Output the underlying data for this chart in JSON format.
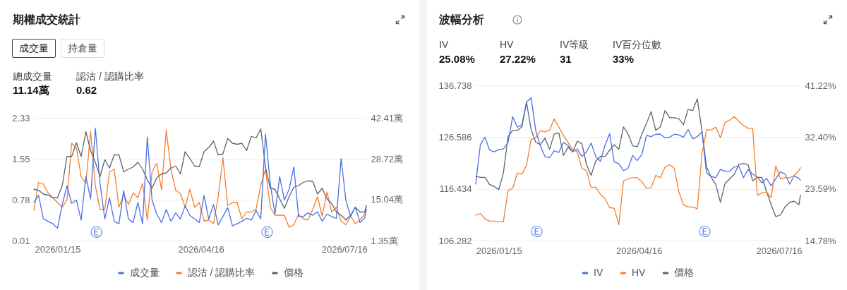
{
  "chart_data": [
    {
      "type": "line",
      "title": "期權成交統計",
      "x": [
        "2025-12-31",
        "2026-01-03",
        "2026-01-06",
        "2026-01-09",
        "2026-01-12",
        "2026-01-15",
        "2026-01-18",
        "2026-01-21",
        "2026-01-24",
        "2026-01-27",
        "2026-01-30",
        "2026-02-02",
        "2026-02-05",
        "2026-02-08",
        "2026-02-11",
        "2026-02-14",
        "2026-02-17",
        "2026-02-20",
        "2026-02-23",
        "2026-02-26",
        "2026-03-01",
        "2026-03-04",
        "2026-03-07",
        "2026-03-10",
        "2026-03-13",
        "2026-03-16",
        "2026-03-19",
        "2026-03-22",
        "2026-03-25",
        "2026-03-28",
        "2026-03-31",
        "2026-04-03",
        "2026-04-06",
        "2026-04-09",
        "2026-04-12",
        "2026-04-15",
        "2026-04-18",
        "2026-04-21",
        "2026-04-24",
        "2026-04-27",
        "2026-04-30",
        "2026-05-03",
        "2026-05-06",
        "2026-05-09",
        "2026-05-12",
        "2026-05-15",
        "2026-05-18",
        "2026-05-21",
        "2026-05-24",
        "2026-05-27",
        "2026-05-30",
        "2026-06-02",
        "2026-06-05",
        "2026-06-08",
        "2026-06-11",
        "2026-06-14",
        "2026-06-17",
        "2026-06-20",
        "2026-06-23",
        "2026-06-26",
        "2026-06-29",
        "2026-07-02",
        "2026-07-05",
        "2026-07-08",
        "2026-07-11",
        "2026-07-14",
        "2026-07-17",
        "2026-07-20",
        "2026-07-23",
        "2026-07-26",
        "2026-07-29",
        "2026-07-30"
      ],
      "xlim": [
        "2025-12-31",
        "2026-07-30"
      ],
      "xticks": [
        {
          "value": "2026-01-15",
          "label": "2026/01/15"
        },
        {
          "value": "2026-04-16",
          "label": "2026/04/16"
        },
        {
          "value": "2026-07-16",
          "label": "2026/07/16"
        }
      ],
      "ylim": [
        0.01,
        2.33
      ],
      "yticks": [
        0.01,
        0.78,
        1.55,
        2.33
      ],
      "y2lim": [
        1.35,
        42.41
      ],
      "y2ticks": [
        {
          "value": 1.35,
          "label": "1.35萬"
        },
        {
          "value": 15.04,
          "label": "15.04萬"
        },
        {
          "value": 28.72,
          "label": "28.72萬"
        },
        {
          "value": 42.41,
          "label": "42.41萬"
        }
      ],
      "grid": "y",
      "legend": "bottom",
      "series": [
        {
          "name": "成交量",
          "color": "#4a70e6",
          "axis": "y2",
          "values": [
            14.1,
            16.5,
            8.6,
            7.8,
            7.0,
            5.5,
            13.4,
            19.7,
            13.8,
            14.9,
            8.2,
            22.8,
            15.3,
            39.0,
            20.5,
            8.6,
            15.7,
            7.8,
            7.0,
            18.1,
            8.6,
            7.4,
            14.1,
            7.0,
            36.0,
            14.9,
            10.2,
            7.4,
            11.8,
            7.8,
            10.6,
            8.6,
            13.0,
            9.8,
            8.6,
            7.4,
            16.5,
            8.6,
            13.4,
            6.6,
            9.4,
            12.4,
            6.3,
            7.0,
            7.8,
            8.8,
            8.2,
            11.4,
            8.6,
            37.0,
            20.5,
            10.2,
            22.8,
            14.9,
            18.5,
            26.0,
            9.4,
            9.4,
            10.6,
            9.8,
            11.0,
            7.8,
            10.2,
            9.4,
            8.8,
            28.8,
            14.9,
            9.4,
            12.6,
            7.4,
            9.0,
            11.8
          ]
        },
        {
          "name": "認沽 / 認購比率",
          "color": "#f47f2d",
          "values": [
            0.58,
            1.11,
            1.08,
            0.91,
            0.82,
            0.73,
            0.64,
            0.78,
            1.85,
            1.76,
            1.22,
            1.09,
            2.07,
            1.05,
            0.6,
            0.6,
            1.31,
            1.36,
            0.64,
            0.88,
            0.69,
            0.91,
            0.82,
            1.09,
            0.4,
            1.31,
            1.47,
            0.97,
            2.1,
            1.36,
            0.96,
            0.9,
            0.64,
            0.98,
            0.64,
            0.73,
            0.38,
            0.4,
            0.33,
            0.84,
            1.58,
            0.67,
            0.73,
            0.73,
            0.42,
            0.55,
            0.55,
            0.6,
            1.05,
            1.36,
            0.64,
            0.49,
            0.49,
            0.49,
            0.26,
            0.31,
            0.51,
            0.42,
            0.4,
            0.6,
            0.84,
            0.47,
            0.93,
            0.55,
            0.64,
            0.38,
            0.31,
            0.47,
            0.33,
            0.4,
            0.51,
            0.67
          ]
        },
        {
          "name": "價格",
          "color": "#5c6370",
          "values": [
            0.98,
            0.96,
            0.89,
            0.87,
            0.82,
            0.82,
            1.05,
            1.6,
            1.6,
            1.86,
            1.6,
            2.07,
            1.71,
            1.49,
            1.22,
            1.54,
            1.38,
            1.63,
            1.63,
            1.31,
            1.36,
            1.4,
            1.49,
            1.36,
            1.16,
            1.0,
            1.2,
            1.27,
            1.29,
            1.38,
            1.42,
            1.27,
            1.69,
            1.56,
            1.42,
            1.41,
            1.69,
            1.77,
            1.89,
            1.63,
            1.65,
            1.94,
            1.85,
            1.83,
            1.85,
            1.71,
            1.98,
            1.95,
            2.12,
            1.4,
            1.0,
            0.98,
            0.8,
            0.62,
            0.84,
            1.02,
            1.05,
            1.11,
            1.14,
            1.13,
            0.89,
            1.0,
            0.8,
            0.71,
            0.55,
            0.49,
            0.4,
            0.49,
            0.64,
            0.55,
            0.55,
            0.67
          ]
        }
      ],
      "annotations": [
        "成交量",
        "持倉量",
        "總成交量",
        "11.14萬",
        "認沽 / 認購比率",
        "0.62",
        "Ⓔ",
        "Ⓔ"
      ]
    },
    {
      "type": "line",
      "title": "波幅分析",
      "x": [
        "2025-12-31",
        "2026-01-03",
        "2026-01-06",
        "2026-01-09",
        "2026-01-12",
        "2026-01-15",
        "2026-01-18",
        "2026-01-21",
        "2026-01-24",
        "2026-01-27",
        "2026-01-30",
        "2026-02-02",
        "2026-02-05",
        "2026-02-08",
        "2026-02-11",
        "2026-02-14",
        "2026-02-17",
        "2026-02-20",
        "2026-02-23",
        "2026-02-26",
        "2026-03-01",
        "2026-03-04",
        "2026-03-07",
        "2026-03-10",
        "2026-03-13",
        "2026-03-16",
        "2026-03-19",
        "2026-03-22",
        "2026-03-25",
        "2026-03-28",
        "2026-03-31",
        "2026-04-03",
        "2026-04-06",
        "2026-04-09",
        "2026-04-12",
        "2026-04-15",
        "2026-04-18",
        "2026-04-21",
        "2026-04-24",
        "2026-04-27",
        "2026-04-30",
        "2026-05-03",
        "2026-05-06",
        "2026-05-09",
        "2026-05-12",
        "2026-05-15",
        "2026-05-18",
        "2026-05-21",
        "2026-05-24",
        "2026-05-27",
        "2026-05-30",
        "2026-06-02",
        "2026-06-05",
        "2026-06-08",
        "2026-06-11",
        "2026-06-14",
        "2026-06-17",
        "2026-06-20",
        "2026-06-23",
        "2026-06-26",
        "2026-06-29",
        "2026-07-02",
        "2026-07-05",
        "2026-07-08",
        "2026-07-11",
        "2026-07-14",
        "2026-07-17",
        "2026-07-20",
        "2026-07-23",
        "2026-07-26",
        "2026-07-29",
        "2026-07-30"
      ],
      "xlim": [
        "2025-12-31",
        "2026-07-30"
      ],
      "xticks": [
        {
          "value": "2026-01-15",
          "label": "2026/01/15"
        },
        {
          "value": "2026-04-16",
          "label": "2026/04/16"
        },
        {
          "value": "2026-07-16",
          "label": "2026/07/16"
        }
      ],
      "ylim": [
        106.282,
        136.738
      ],
      "yticks": [
        106.282,
        116.434,
        126.586,
        136.738
      ],
      "y2lim": [
        14.78,
        41.22
      ],
      "y2ticks": [
        {
          "value": 14.78,
          "label": "14.78%"
        },
        {
          "value": 23.59,
          "label": "23.59%"
        },
        {
          "value": 32.4,
          "label": "32.40%"
        },
        {
          "value": 41.22,
          "label": "41.22%"
        }
      ],
      "grid": "y",
      "legend": "bottom",
      "series": [
        {
          "name": "IV",
          "color": "#4a70e6",
          "axis": "y2",
          "values": [
            24.4,
            31.1,
            32.4,
            30.2,
            29.9,
            30.3,
            30.4,
            31.5,
            35.9,
            34.1,
            34.5,
            38.4,
            39.1,
            33.5,
            30.9,
            29.1,
            28.9,
            30.1,
            29.8,
            31.5,
            31.0,
            29.9,
            30.4,
            29.1,
            29.9,
            31.4,
            29.1,
            28.3,
            31.0,
            33.0,
            28.2,
            27.9,
            26.7,
            27.1,
            29.3,
            28.4,
            29.5,
            32.7,
            32.5,
            32.9,
            32.9,
            32.3,
            32.4,
            32.9,
            32.8,
            32.4,
            33.7,
            32.1,
            32.5,
            33.3,
            26.3,
            25.7,
            25.5,
            26.9,
            26.6,
            26.6,
            27.3,
            27.5,
            25.5,
            26.9,
            26.1,
            25.6,
            24.6,
            25.4,
            24.1,
            25.3,
            26.5,
            26.1,
            24.4,
            25.8,
            25.4,
            25.1
          ]
        },
        {
          "name": "HV",
          "color": "#f47f2d",
          "axis": "y2",
          "values": [
            19.1,
            19.4,
            18.5,
            18.1,
            18.1,
            18.0,
            18.0,
            23.3,
            23.7,
            26.3,
            26.1,
            27.6,
            32.0,
            32.3,
            33.5,
            33.3,
            33.6,
            35.5,
            34.1,
            32.7,
            31.5,
            30.3,
            29.9,
            27.1,
            26.7,
            23.8,
            23.9,
            22.7,
            21.9,
            20.4,
            20.3,
            17.5,
            24.9,
            25.3,
            25.5,
            25.5,
            24.8,
            23.7,
            23.8,
            25.9,
            25.5,
            27.3,
            27.7,
            27.1,
            23.1,
            20.9,
            20.5,
            20.5,
            20.2,
            29.5,
            33.7,
            33.6,
            34.1,
            32.3,
            34.9,
            35.3,
            35.9,
            35.1,
            34.4,
            33.9,
            33.9,
            22.5,
            22.9,
            23.1,
            22.1,
            27.5,
            25.3,
            25.5,
            25.5,
            25.9,
            26.7,
            27.2
          ]
        },
        {
          "name": "價格",
          "color": "#5c6370",
          "values": [
            118.9,
            118.7,
            118.7,
            117.3,
            116.9,
            116.3,
            119.6,
            126.7,
            127.9,
            127.9,
            128.6,
            133.4,
            128.1,
            125.6,
            125.1,
            126.4,
            124.2,
            127.2,
            127.4,
            123.0,
            124.6,
            123.7,
            125.8,
            125.3,
            121.2,
            119.1,
            121.9,
            122.8,
            122.8,
            124.0,
            125.1,
            124.2,
            128.6,
            127.2,
            124.9,
            124.7,
            127.2,
            129.3,
            131.6,
            127.9,
            128.6,
            131.8,
            130.4,
            130.4,
            130.2,
            129.0,
            132.0,
            131.8,
            134.1,
            127.9,
            120.7,
            118.7,
            117.3,
            113.8,
            117.5,
            118.4,
            119.3,
            121.2,
            121.4,
            121.2,
            118.0,
            118.7,
            118.7,
            115.9,
            113.3,
            111.0,
            111.3,
            112.9,
            113.8,
            114.0,
            113.3,
            115.2
          ]
        }
      ],
      "annotations": [
        "IV",
        "25.08%",
        "HV",
        "27.22%",
        "IV等級",
        "31",
        "IV百分位數",
        "33%",
        "Ⓔ",
        "Ⓔ"
      ]
    }
  ]
}
